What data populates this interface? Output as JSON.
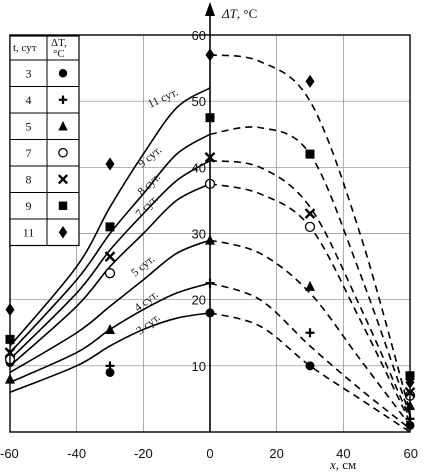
{
  "chart_data": {
    "type": "line",
    "xlabel": "x, см",
    "ylabel": "ΔT, °C",
    "x_axis_symbol": "x",
    "x_axis_unit": ", см",
    "y_axis_symbol": "ΔT",
    "y_axis_unit": ", °C",
    "xlim": [
      -60,
      60
    ],
    "ylim": [
      0,
      60
    ],
    "x_ticks": [
      "-60",
      "-40",
      "-20",
      "0",
      "20",
      "40",
      "60"
    ],
    "y_ticks": [
      "10",
      "20",
      "30",
      "40",
      "50",
      "60"
    ],
    "grid": true,
    "legend": {
      "position": "top-left",
      "header_time": "t, сут",
      "header_delta": "ΔT, °C",
      "rows": [
        {
          "t": "3",
          "marker": "circle-filled"
        },
        {
          "t": "4",
          "marker": "plus"
        },
        {
          "t": "5",
          "marker": "triangle-filled"
        },
        {
          "t": "7",
          "marker": "circle-open"
        },
        {
          "t": "8",
          "marker": "cross"
        },
        {
          "t": "9",
          "marker": "square-filled"
        },
        {
          "t": "11",
          "marker": "diamond-filled"
        }
      ]
    },
    "series": [
      {
        "name": "3 сут.",
        "marker": "circle-filled",
        "solid_curve": [
          [
            -60,
            6
          ],
          [
            -40,
            10
          ],
          [
            -30,
            13
          ],
          [
            -20,
            15.5
          ],
          [
            -10,
            17.2
          ],
          [
            0,
            18
          ]
        ],
        "dashed_curve": [
          [
            0,
            18
          ],
          [
            15,
            16
          ],
          [
            30,
            10
          ],
          [
            45,
            5
          ],
          [
            60,
            0
          ]
        ],
        "points": [
          [
            -60,
            10.5
          ],
          [
            -30,
            9
          ],
          [
            0,
            18
          ],
          [
            30,
            10
          ],
          [
            60,
            1
          ]
        ]
      },
      {
        "name": "4 сут.",
        "marker": "plus",
        "solid_curve": [
          [
            -60,
            7.5
          ],
          [
            -40,
            12
          ],
          [
            -30,
            15.5
          ],
          [
            -20,
            18.5
          ],
          [
            -10,
            21
          ],
          [
            0,
            22.5
          ]
        ],
        "dashed_curve": [
          [
            0,
            22.5
          ],
          [
            15,
            20
          ],
          [
            30,
            13
          ],
          [
            45,
            6.5
          ],
          [
            60,
            0.5
          ]
        ],
        "points": [
          [
            -60,
            11.5
          ],
          [
            -30,
            10
          ],
          [
            0,
            22.5
          ],
          [
            30,
            15
          ],
          [
            60,
            2
          ]
        ]
      },
      {
        "name": "5 сут.",
        "marker": "triangle-filled",
        "solid_curve": [
          [
            -60,
            9
          ],
          [
            -40,
            15
          ],
          [
            -30,
            19
          ],
          [
            -20,
            23
          ],
          [
            -10,
            27
          ],
          [
            0,
            29
          ]
        ],
        "dashed_curve": [
          [
            0,
            29
          ],
          [
            15,
            27
          ],
          [
            30,
            21
          ],
          [
            45,
            11
          ],
          [
            60,
            1
          ]
        ],
        "points": [
          [
            -60,
            8
          ],
          [
            -30,
            15.5
          ],
          [
            0,
            29
          ],
          [
            30,
            22
          ],
          [
            60,
            4
          ]
        ]
      },
      {
        "name": "7 сут.",
        "marker": "circle-open",
        "solid_curve": [
          [
            -60,
            10
          ],
          [
            -40,
            19
          ],
          [
            -30,
            25
          ],
          [
            -20,
            30
          ],
          [
            -10,
            35
          ],
          [
            0,
            37.5
          ]
        ],
        "dashed_curve": [
          [
            0,
            37.5
          ],
          [
            15,
            36
          ],
          [
            30,
            31
          ],
          [
            45,
            17
          ],
          [
            60,
            1.5
          ]
        ],
        "points": [
          [
            -60,
            11
          ],
          [
            -30,
            24
          ],
          [
            0,
            37.5
          ],
          [
            30,
            31
          ],
          [
            60,
            5.5
          ]
        ]
      },
      {
        "name": "8 сут.",
        "marker": "cross",
        "solid_curve": [
          [
            -60,
            11
          ],
          [
            -40,
            21
          ],
          [
            -30,
            27.5
          ],
          [
            -20,
            33
          ],
          [
            -10,
            38
          ],
          [
            0,
            41
          ]
        ],
        "dashed_curve": [
          [
            0,
            41
          ],
          [
            15,
            40
          ],
          [
            30,
            34
          ],
          [
            45,
            19
          ],
          [
            60,
            2
          ]
        ],
        "points": [
          [
            -60,
            12
          ],
          [
            -30,
            26.5
          ],
          [
            0,
            41.5
          ],
          [
            30,
            33
          ],
          [
            60,
            6
          ]
        ]
      },
      {
        "name": "9 сут.",
        "marker": "square-filled",
        "solid_curve": [
          [
            -60,
            12
          ],
          [
            -40,
            23
          ],
          [
            -30,
            30
          ],
          [
            -20,
            36
          ],
          [
            -10,
            42
          ],
          [
            0,
            45
          ]
        ],
        "dashed_curve": [
          [
            0,
            45
          ],
          [
            15,
            46
          ],
          [
            30,
            42
          ],
          [
            45,
            24
          ],
          [
            60,
            2.5
          ]
        ],
        "points": [
          [
            -60,
            14
          ],
          [
            -30,
            31
          ],
          [
            0,
            47.5
          ],
          [
            30,
            42
          ],
          [
            60,
            8.5
          ]
        ]
      },
      {
        "name": "11 сут.",
        "marker": "diamond-filled",
        "solid_curve": [
          [
            -60,
            13
          ],
          [
            -40,
            25
          ],
          [
            -30,
            34
          ],
          [
            -20,
            42
          ],
          [
            -10,
            49
          ],
          [
            0,
            52
          ]
        ],
        "dashed_curve": [
          [
            0,
            57
          ],
          [
            15,
            56
          ],
          [
            30,
            50
          ],
          [
            45,
            30
          ],
          [
            60,
            3
          ]
        ],
        "points": [
          [
            -60,
            18.5
          ],
          [
            -30,
            40.5
          ],
          [
            0,
            57
          ],
          [
            30,
            53
          ],
          [
            60,
            7.5
          ]
        ]
      }
    ],
    "curve_labels": [
      "3 сут.",
      "4 сут.",
      "5 сут.",
      "7 сут.",
      "8 сут.",
      "9 сут.",
      "11 сут."
    ]
  }
}
